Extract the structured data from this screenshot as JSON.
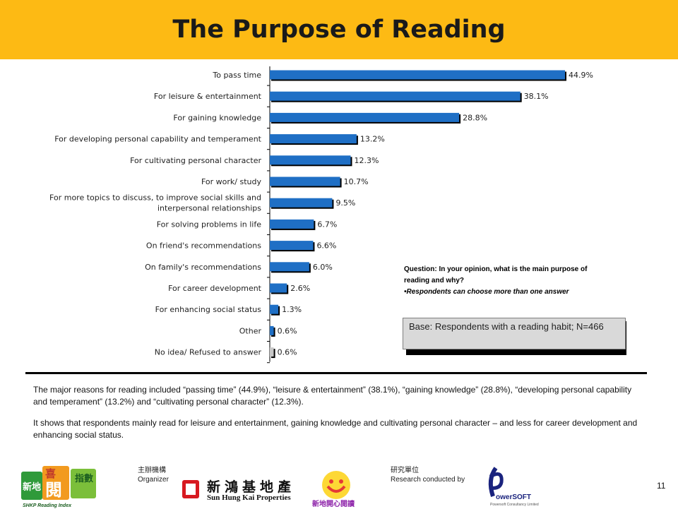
{
  "slide": {
    "title": "The Purpose of Reading",
    "page_number": "11"
  },
  "colors": {
    "header": "#FDBA14",
    "bar": "#1F6FC5",
    "bar_last": "#C8C8C8"
  },
  "chart_data": {
    "type": "bar",
    "orientation": "horizontal",
    "categories": [
      "To pass time",
      "For leisure & entertainment",
      "For gaining knowledge",
      "For developing personal capability and temperament",
      "For cultivating personal character",
      "For work/ study",
      "For more topics to discuss, to improve social skills and interpersonal relationships",
      "For solving problems in life",
      "On friend's recommendations",
      "On family's recommendations",
      "For career development",
      "For enhancing social status",
      "Other",
      "No idea/ Refused to answer"
    ],
    "category_lines": [
      [
        "To pass time"
      ],
      [
        "For leisure & entertainment"
      ],
      [
        "For gaining knowledge"
      ],
      [
        "For developing personal capability and temperament"
      ],
      [
        "For cultivating personal character"
      ],
      [
        "For work/ study"
      ],
      [
        "For more topics to discuss, to improve social skills and",
        "interpersonal relationships"
      ],
      [
        "For solving problems in life"
      ],
      [
        "On friend's recommendations"
      ],
      [
        "On family's recommendations"
      ],
      [
        "For career development"
      ],
      [
        "For enhancing social status"
      ],
      [
        "Other"
      ],
      [
        "No idea/ Refused to answer"
      ]
    ],
    "values": [
      44.9,
      38.1,
      28.8,
      13.2,
      12.3,
      10.7,
      9.5,
      6.7,
      6.6,
      6.0,
      2.6,
      1.3,
      0.6,
      0.6
    ],
    "value_labels": [
      "44.9%",
      "38.1%",
      "28.8%",
      "13.2%",
      "12.3%",
      "10.7%",
      "9.5%",
      "6.7%",
      "6.6%",
      "6.0%",
      "2.6%",
      "1.3%",
      "0.6%",
      "0.6%"
    ],
    "unit": "%"
  },
  "question": {
    "text": "Question: In your opinion, what is the main purpose of reading and why?",
    "note": "•Respondents can choose more than one answer"
  },
  "base": "Base: Respondents with a reading habit; N=466",
  "summary": [
    "The major reasons for reading included “passing time” (44.9%), “leisure & entertainment” (38.1%), “gaining knowledge” (28.8%), “developing personal capability and temperament” (13.2%) and “cultivating personal character” (12.3%).",
    "It shows that respondents mainly read for leisure and entertainment, gaining knowledge and cultivating personal character – and less for career development and enhancing social status."
  ],
  "footer": {
    "organizer_cn": "主辦機構",
    "organizer_en": "Organizer",
    "research_cn": "研究單位",
    "research_en": "Research conducted by",
    "shk_cn": "新鴻基地產",
    "shk_en": "Sun Hung Kai Properties",
    "logo_shkp_cn_top": "喜",
    "logo_shkp_cn_mid": "新地",
    "logo_shkp_cn_main": "閱",
    "logo_shkp_cn_side": "指數",
    "logo_shkp_en": "SHKP Reading Index",
    "logo_smile_text": "新地開心閱讀",
    "logo_ps_text": "owerSOFT",
    "logo_ps_sub": "Powersoft Consultancy Limited"
  }
}
